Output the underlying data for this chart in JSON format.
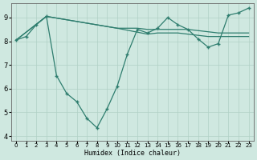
{
  "xlabel": "Humidex (Indice chaleur)",
  "bg_color": "#cfe8e0",
  "grid_color": "#b0d0c5",
  "line_color": "#2e7d6e",
  "xlim": [
    -0.5,
    23.5
  ],
  "ylim": [
    3.8,
    9.6
  ],
  "yticks": [
    4,
    5,
    6,
    7,
    8,
    9
  ],
  "xticks": [
    0,
    1,
    2,
    3,
    4,
    5,
    6,
    7,
    8,
    9,
    10,
    11,
    12,
    13,
    14,
    15,
    16,
    17,
    18,
    19,
    20,
    21,
    22,
    23
  ],
  "line1_x": [
    0,
    1,
    2,
    3,
    4,
    5,
    6,
    7,
    8,
    9,
    10,
    11,
    12,
    13,
    14,
    15,
    16,
    17,
    18,
    19,
    20,
    21,
    22,
    23
  ],
  "line1_y": [
    8.05,
    8.2,
    8.7,
    9.05,
    6.55,
    5.8,
    5.45,
    4.75,
    4.35,
    5.15,
    6.1,
    7.45,
    8.5,
    8.35,
    8.55,
    9.0,
    8.7,
    8.5,
    8.1,
    7.75,
    7.9,
    9.1,
    9.2,
    9.4
  ],
  "line2_x": [
    0,
    3,
    10,
    13,
    14,
    15,
    16,
    17,
    18,
    19,
    20,
    21,
    22,
    23
  ],
  "line2_y": [
    8.05,
    9.05,
    8.55,
    8.3,
    8.35,
    8.35,
    8.35,
    8.3,
    8.25,
    8.2,
    8.2,
    8.2,
    8.2,
    8.2
  ],
  "line3_x": [
    0,
    3,
    10,
    11,
    12,
    13,
    14,
    15,
    16,
    17,
    18,
    19,
    20,
    21,
    22,
    23
  ],
  "line3_y": [
    8.05,
    9.05,
    8.55,
    8.55,
    8.55,
    8.5,
    8.5,
    8.5,
    8.5,
    8.5,
    8.45,
    8.4,
    8.35,
    8.35,
    8.35,
    8.35
  ]
}
